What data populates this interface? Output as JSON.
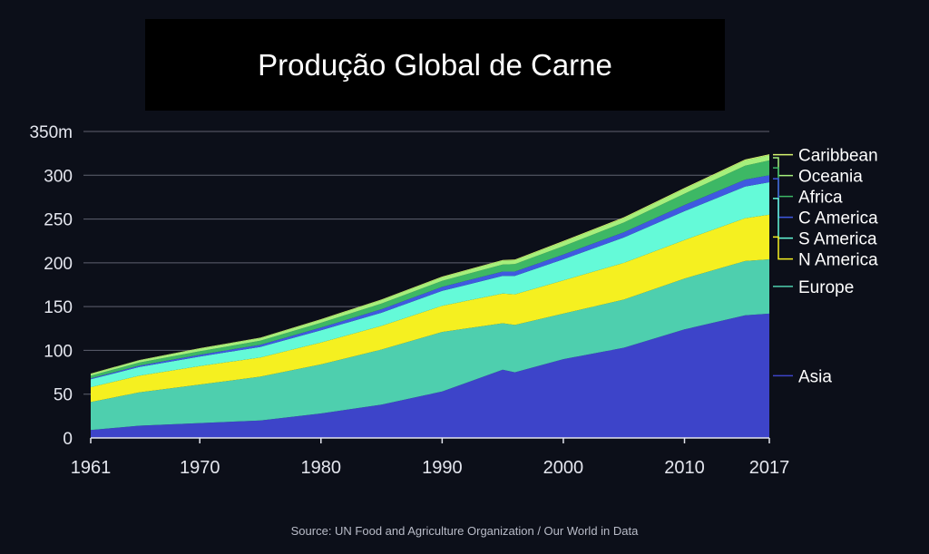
{
  "title": "Produção Global de Carne",
  "source": "Source: UN Food and Agriculture Organization / Our World in Data",
  "chart_data": {
    "type": "area",
    "stacked": true,
    "title": "Produção Global de Carne",
    "xlabel": "",
    "ylabel": "",
    "xlim": [
      1961,
      2017
    ],
    "ylim": [
      0,
      350
    ],
    "grid": true,
    "legend": "right",
    "y_ticks": [
      {
        "value": 0,
        "label": "0"
      },
      {
        "value": 50,
        "label": "50"
      },
      {
        "value": 100,
        "label": "100"
      },
      {
        "value": 150,
        "label": "150"
      },
      {
        "value": 200,
        "label": "200"
      },
      {
        "value": 250,
        "label": "250"
      },
      {
        "value": 300,
        "label": "300"
      },
      {
        "value": 350,
        "label": "350m"
      }
    ],
    "x_ticks": [
      {
        "value": 1961,
        "label": "1961"
      },
      {
        "value": 1970,
        "label": "1970"
      },
      {
        "value": 1980,
        "label": "1980"
      },
      {
        "value": 1990,
        "label": "1990"
      },
      {
        "value": 2000,
        "label": "2000"
      },
      {
        "value": 2010,
        "label": "2010"
      },
      {
        "value": 2017,
        "label": "2017"
      }
    ],
    "x": [
      1961,
      1965,
      1970,
      1975,
      1980,
      1985,
      1990,
      1995,
      1996,
      2000,
      2005,
      2010,
      2015,
      2017
    ],
    "series": [
      {
        "name": "Asia",
        "color": "#3d44c9",
        "values": [
          9,
          14,
          17,
          20,
          28,
          38,
          53,
          78,
          75,
          90,
          103,
          124,
          140,
          142
        ]
      },
      {
        "name": "Europe",
        "color": "#4ecfae",
        "values": [
          32,
          38,
          44,
          50,
          56,
          63,
          68,
          53,
          54,
          52,
          55,
          58,
          62,
          62
        ]
      },
      {
        "name": "N America",
        "color": "#f5f020",
        "values": [
          17,
          19,
          21,
          22,
          25,
          27,
          30,
          34,
          35,
          38,
          42,
          44,
          49,
          51
        ]
      },
      {
        "name": "S America",
        "color": "#64fad8",
        "values": [
          9,
          10,
          11,
          12,
          14,
          15,
          17,
          20,
          21,
          24,
          29,
          33,
          36,
          37
        ]
      },
      {
        "name": "C America",
        "color": "#3f59e0",
        "values": [
          1,
          1.5,
          2,
          2.5,
          3,
          4,
          4.5,
          5,
          5,
          5.5,
          6,
          7,
          8,
          8
        ]
      },
      {
        "name": "Africa",
        "color": "#3db865",
        "values": [
          3,
          3.5,
          4,
          4.5,
          5.5,
          6.5,
          7,
          8,
          8.5,
          9.5,
          11,
          13,
          16,
          17
        ]
      },
      {
        "name": "Oceania",
        "color": "#a5f07c",
        "values": [
          2,
          2.5,
          3,
          3,
          3.5,
          4,
          4,
          4.5,
          4.5,
          5,
          5,
          5.5,
          6,
          6
        ]
      },
      {
        "name": "Caribbean",
        "color": "#d6f56f",
        "values": [
          0.5,
          0.5,
          0.5,
          0.5,
          0.6,
          0.7,
          0.8,
          0.8,
          0.8,
          0.9,
          1,
          1,
          1,
          1
        ]
      }
    ]
  }
}
